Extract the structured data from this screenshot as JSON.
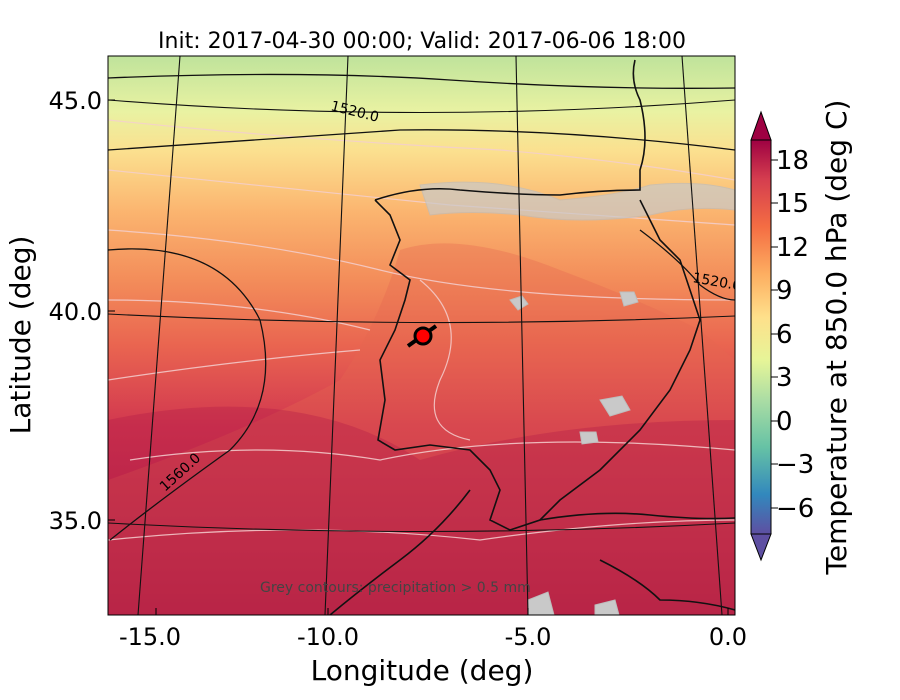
{
  "title": "Init: 2017-04-30 00:00; Valid: 2017-06-06 18:00",
  "x_axis": {
    "label": "Longitude (deg)",
    "ticks": [
      "-15.0",
      "-10.0",
      "-5.0",
      "0.0"
    ]
  },
  "y_axis": {
    "label": "Latitude (deg)",
    "ticks": [
      "45.0",
      "40.0",
      "35.0"
    ]
  },
  "colorbar": {
    "label": "Temperature at 850.0 hPa (deg C)",
    "ticks": [
      "18",
      "15",
      "12",
      "9",
      "6",
      "3",
      "0",
      "−3",
      "−6"
    ],
    "colormap": "Spectral_r"
  },
  "contour_labels": [
    "1520.0",
    "1560.0",
    "1520.0"
  ],
  "note": "Grey contours: precipitation > 0.5 mm",
  "marker_color": "#ff0000"
}
